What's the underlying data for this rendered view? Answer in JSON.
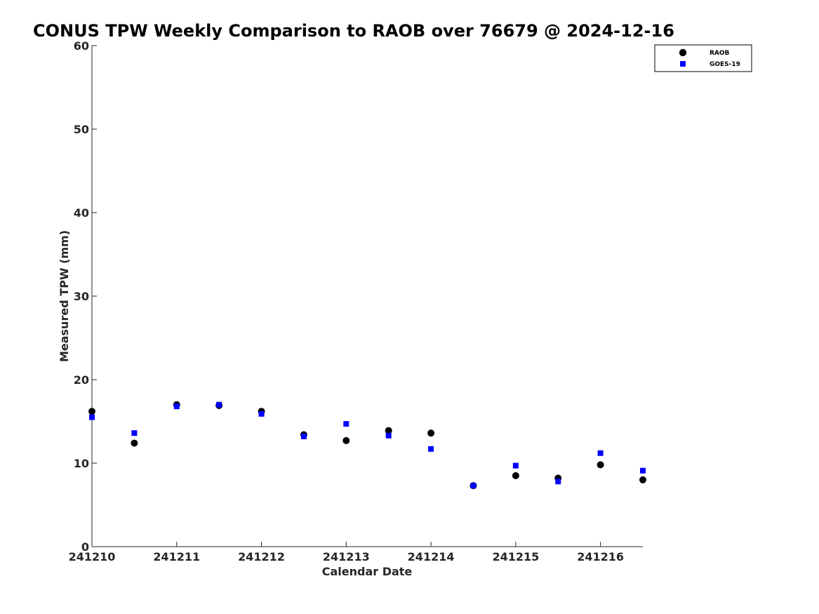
{
  "chart_data": {
    "type": "scatter",
    "title": "CONUS TPW Weekly Comparison to RAOB over 76679 @ 2024-12-16",
    "xlabel": "Calendar Date",
    "ylabel": "Measured TPW (mm)",
    "x_tick_labels": [
      "241210",
      "241211",
      "241212",
      "241213",
      "241214",
      "241215",
      "241216"
    ],
    "x_ticks": [
      0,
      1,
      2,
      3,
      4,
      5,
      6
    ],
    "y_ticks": [
      0,
      10,
      20,
      30,
      40,
      50,
      60
    ],
    "xlim": [
      0,
      6.5
    ],
    "ylim": [
      0,
      60
    ],
    "grid": false,
    "legend_position": "top-right",
    "series": [
      {
        "name": "RAOB",
        "marker": "circle",
        "color": "#000000",
        "x": [
          0,
          0.5,
          1,
          1.5,
          2,
          2.5,
          3,
          3.5,
          4,
          4.5,
          5,
          5.5,
          6,
          6.5
        ],
        "y": [
          16.2,
          12.4,
          17.0,
          16.9,
          16.2,
          13.4,
          12.7,
          13.9,
          13.6,
          7.3,
          8.5,
          8.2,
          9.8,
          8.0
        ]
      },
      {
        "name": "GOES-19",
        "marker": "square",
        "color": "#0000ff",
        "x": [
          0,
          0.5,
          1,
          1.5,
          2,
          2.5,
          3,
          3.5,
          4,
          4.5,
          5,
          5.5,
          6,
          6.5
        ],
        "y": [
          15.5,
          13.6,
          16.8,
          17.0,
          15.9,
          13.2,
          14.7,
          13.3,
          11.7,
          7.3,
          9.7,
          7.8,
          11.2,
          9.1
        ]
      }
    ]
  }
}
